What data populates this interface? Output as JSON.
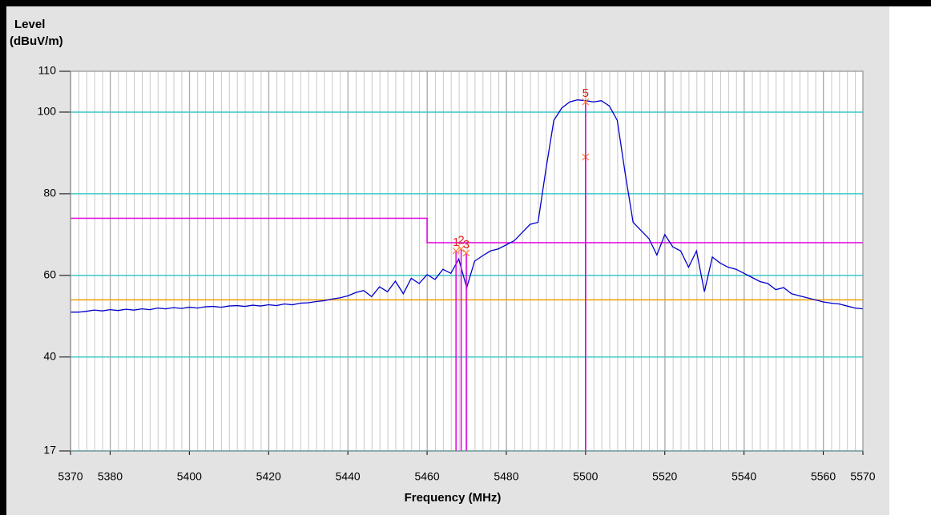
{
  "chart_data": {
    "type": "line",
    "ylabel": "Level",
    "ylabel_unit": "(dBuV/m)",
    "xlabel": "Frequency (MHz)",
    "xlim": [
      5370,
      5570
    ],
    "xticks": [
      5370,
      5380,
      5400,
      5420,
      5440,
      5460,
      5480,
      5500,
      5520,
      5540,
      5560,
      5570
    ],
    "ylim": [
      17,
      110
    ],
    "yticks": [
      17,
      40,
      60,
      80,
      100,
      110
    ],
    "grid": true,
    "grid_color": "#3cc8c8",
    "x": [
      5370,
      5372,
      5374,
      5376,
      5378,
      5380,
      5382,
      5384,
      5386,
      5388,
      5390,
      5392,
      5394,
      5396,
      5398,
      5400,
      5402,
      5404,
      5406,
      5408,
      5410,
      5412,
      5414,
      5416,
      5418,
      5420,
      5422,
      5424,
      5426,
      5428,
      5430,
      5432,
      5434,
      5436,
      5438,
      5440,
      5442,
      5444,
      5446,
      5448,
      5450,
      5452,
      5454,
      5456,
      5458,
      5460,
      5462,
      5464,
      5466,
      5468,
      5470,
      5472,
      5474,
      5476,
      5478,
      5480,
      5482,
      5484,
      5486,
      5488,
      5490,
      5492,
      5494,
      5496,
      5498,
      5500,
      5502,
      5504,
      5506,
      5508,
      5510,
      5512,
      5514,
      5516,
      5518,
      5520,
      5522,
      5524,
      5526,
      5528,
      5530,
      5532,
      5534,
      5536,
      5538,
      5540,
      5542,
      5544,
      5546,
      5548,
      5550,
      5552,
      5554,
      5556,
      5558,
      5560,
      5562,
      5564,
      5566,
      5568,
      5570
    ],
    "series": [
      {
        "color": "#0000cc",
        "values": [
          51,
          51,
          51.2,
          51.5,
          51.3,
          51.6,
          51.4,
          51.7,
          51.5,
          51.8,
          51.6,
          52,
          51.8,
          52.1,
          51.9,
          52.2,
          52,
          52.3,
          52.4,
          52.2,
          52.5,
          52.6,
          52.4,
          52.7,
          52.5,
          52.8,
          52.6,
          53,
          52.8,
          53.2,
          53.3,
          53.6,
          53.8,
          54.2,
          54.5,
          55,
          55.8,
          56.3,
          54.8,
          57.2,
          56,
          58.6,
          55.5,
          59.3,
          58,
          60.2,
          59,
          61.5,
          60.5,
          64,
          57,
          63.5,
          64.8,
          66,
          66.5,
          67.5,
          68.5,
          70.5,
          72.5,
          73,
          86,
          98,
          101,
          102.5,
          103,
          102.8,
          102.5,
          102.8,
          101.5,
          98,
          85,
          73,
          71,
          69,
          65,
          70,
          67,
          66,
          62,
          66,
          56,
          64.5,
          63,
          62,
          61.5,
          60.5,
          59.5,
          58.5,
          58,
          56.5,
          57,
          55.5,
          55,
          54.5,
          54,
          53.5,
          53.2,
          53,
          52.5,
          52,
          51.8
        ]
      }
    ],
    "limit_lines": [
      {
        "color": "#e000e0",
        "x": [
          5370,
          5460,
          5460,
          5570
        ],
        "values": [
          74,
          74,
          68,
          68
        ]
      },
      {
        "color": "#f0a000",
        "x": [
          5370,
          5570
        ],
        "values": [
          54,
          54
        ]
      }
    ],
    "markers": [
      {
        "label": "1",
        "x": 5467.3,
        "value": 66
      },
      {
        "label": "2",
        "x": 5468.6,
        "value": 66.5
      },
      {
        "label": "3",
        "x": 5469.9,
        "value": 65.5
      },
      {
        "x": 5500,
        "value": 89
      },
      {
        "label": "5",
        "x": 5500,
        "value": 102.5
      }
    ],
    "marker_color": "#e000e0",
    "marker_label_color": "#e02020"
  }
}
